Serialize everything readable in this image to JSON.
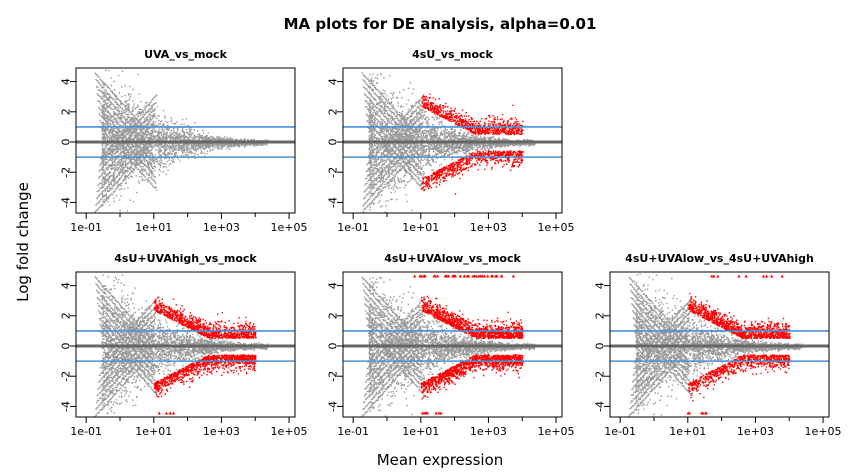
{
  "chart_data": {
    "type": "scatter",
    "title": "MA plots for DE analysis, alpha=0.01",
    "xlabel": "Mean expression",
    "ylabel": "Log fold change",
    "xscale": "log",
    "xlim": [
      0.05,
      150000
    ],
    "ylim": [
      -4.7,
      4.9
    ],
    "x_ticks": [
      "1e-01",
      "1e+01",
      "1e+03",
      "1e+05"
    ],
    "y_ticks": [
      "-4",
      "-2",
      "0",
      "2",
      "4"
    ],
    "threshold_lines": [
      1,
      -1
    ],
    "colors": {
      "not_significant": "#999999",
      "significant": "#ff0000",
      "threshold": "#4a90d9",
      "zero_line": "#666666"
    },
    "panels": [
      {
        "title": "UVA_vs_mock",
        "sig_up": 0,
        "sig_down": 0,
        "clipped_top": 0,
        "clipped_bottom": 0
      },
      {
        "title": "4sU_vs_mock",
        "sig_up": 0.55,
        "sig_down": 0.5,
        "clipped_top": 0,
        "clipped_bottom": 0
      },
      {
        "title": "4sU+UVAhigh_vs_mock",
        "sig_up": 0.7,
        "sig_down": 0.75,
        "clipped_top": 0,
        "clipped_bottom": 0.1
      },
      {
        "title": "4sU+UVAlow_vs_mock",
        "sig_up": 0.85,
        "sig_down": 0.85,
        "clipped_top": 0.8,
        "clipped_bottom": 0.15
      },
      {
        "title": "4sU+UVAlow_vs_4sU+UVAhigh",
        "sig_up": 0.8,
        "sig_down": 0.55,
        "clipped_top": 0.15,
        "clipped_bottom": 0.1
      }
    ]
  }
}
